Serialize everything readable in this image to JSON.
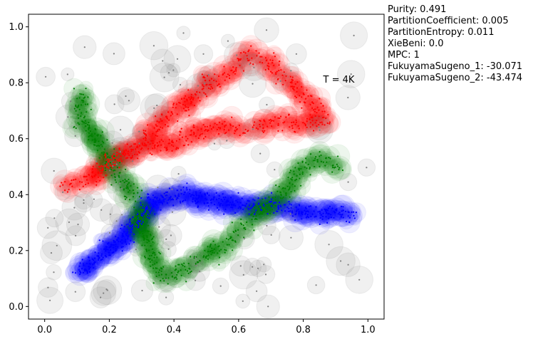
{
  "chart_data": {
    "type": "scatter",
    "title": "",
    "xlabel": "",
    "ylabel": "",
    "xlim": [
      -0.05,
      1.05
    ],
    "ylim": [
      -0.045,
      1.045
    ],
    "xticks": [
      "0.0",
      "0.2",
      "0.4",
      "0.6",
      "0.8",
      "1.0"
    ],
    "xtick_values": [
      0.0,
      0.2,
      0.4,
      0.6,
      0.8,
      1.0
    ],
    "yticks": [
      "0.0",
      "0.2",
      "0.4",
      "0.6",
      "0.8",
      "1.0"
    ],
    "ytick_values": [
      0.0,
      0.2,
      0.4,
      0.6,
      0.8,
      1.0
    ],
    "grid": false,
    "annotation": {
      "text": "T = 4K",
      "x": 0.91,
      "y": 0.81
    },
    "series": [
      {
        "color": "#ff0000",
        "path": [
          [
            0.07,
            0.43
          ],
          [
            0.14,
            0.45
          ],
          [
            0.2,
            0.52
          ],
          [
            0.27,
            0.55
          ],
          [
            0.33,
            0.63
          ],
          [
            0.4,
            0.69
          ],
          [
            0.46,
            0.75
          ],
          [
            0.52,
            0.81
          ],
          [
            0.58,
            0.84
          ],
          [
            0.63,
            0.9
          ],
          [
            0.7,
            0.86
          ],
          [
            0.76,
            0.8
          ],
          [
            0.82,
            0.73
          ],
          [
            0.87,
            0.68
          ],
          [
            0.8,
            0.64
          ],
          [
            0.72,
            0.67
          ],
          [
            0.64,
            0.63
          ],
          [
            0.55,
            0.65
          ],
          [
            0.47,
            0.62
          ],
          [
            0.4,
            0.58
          ],
          [
            0.3,
            0.56
          ],
          [
            0.22,
            0.53
          ],
          [
            0.14,
            0.47
          ]
        ],
        "count": 620
      },
      {
        "color": "#0000ff",
        "path": [
          [
            0.11,
            0.12
          ],
          [
            0.16,
            0.17
          ],
          [
            0.2,
            0.21
          ],
          [
            0.24,
            0.24
          ],
          [
            0.28,
            0.29
          ],
          [
            0.31,
            0.33
          ],
          [
            0.33,
            0.37
          ],
          [
            0.4,
            0.4
          ],
          [
            0.47,
            0.39
          ],
          [
            0.55,
            0.37
          ],
          [
            0.63,
            0.36
          ],
          [
            0.7,
            0.37
          ],
          [
            0.77,
            0.34
          ],
          [
            0.85,
            0.33
          ],
          [
            0.91,
            0.34
          ],
          [
            0.95,
            0.32
          ]
        ],
        "count": 560
      },
      {
        "color": "#008000",
        "path": [
          [
            0.12,
            0.77
          ],
          [
            0.11,
            0.7
          ],
          [
            0.12,
            0.64
          ],
          [
            0.17,
            0.58
          ],
          [
            0.21,
            0.5
          ],
          [
            0.26,
            0.41
          ],
          [
            0.29,
            0.33
          ],
          [
            0.31,
            0.27
          ],
          [
            0.33,
            0.2
          ],
          [
            0.36,
            0.1
          ],
          [
            0.42,
            0.12
          ],
          [
            0.48,
            0.17
          ],
          [
            0.54,
            0.21
          ],
          [
            0.59,
            0.25
          ],
          [
            0.62,
            0.3
          ],
          [
            0.66,
            0.33
          ],
          [
            0.71,
            0.37
          ],
          [
            0.76,
            0.44
          ],
          [
            0.8,
            0.5
          ],
          [
            0.86,
            0.53
          ],
          [
            0.91,
            0.5
          ]
        ],
        "count": 520
      },
      {
        "color": "#808080",
        "path": [],
        "count": 120
      }
    ]
  },
  "metrics": {
    "purity": "Purity: 0.491",
    "partition_coefficient": "PartitionCoefficient: 0.005",
    "partition_entropy": "PartitionEntropy: 0.011",
    "xie_beni": "XieBeni: 0.0",
    "mpc": "MPC: 1",
    "fukuyama_sugeno_1": "FukuyamaSugeno_1: -30.071",
    "fukuyama_sugeno_2": "FukuyamaSugeno_2: -43.474"
  }
}
